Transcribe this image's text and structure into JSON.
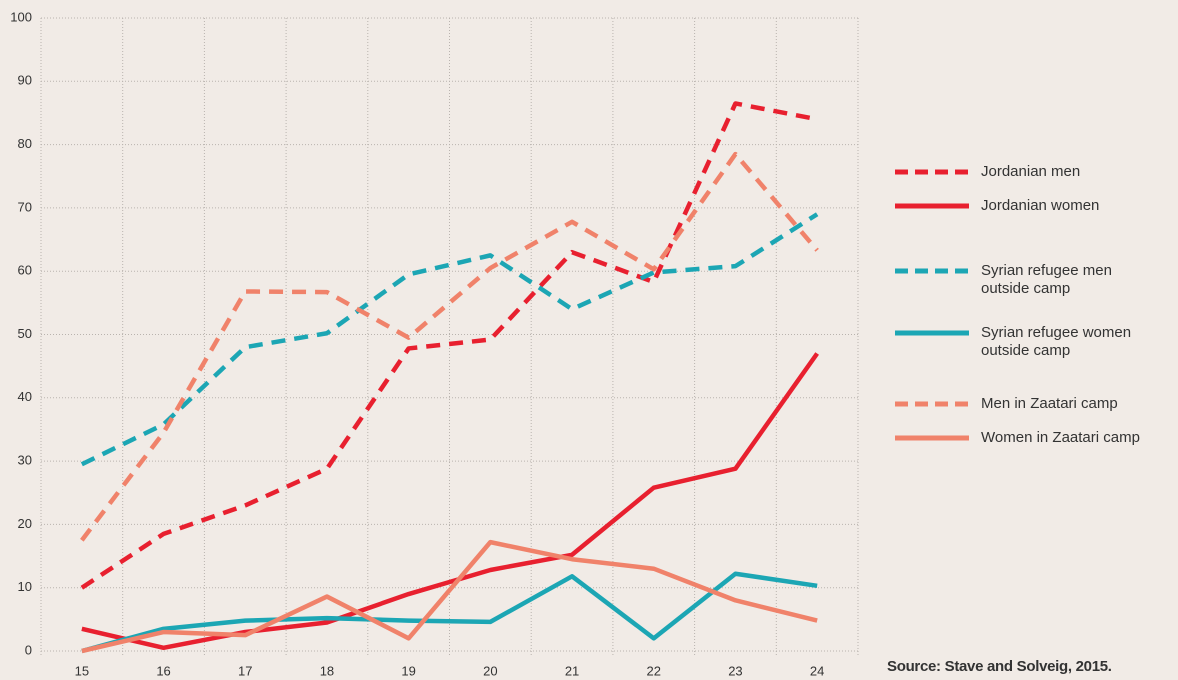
{
  "chart_data": {
    "type": "line",
    "categories": [
      "15",
      "16",
      "17",
      "18",
      "19",
      "20",
      "21",
      "22",
      "23",
      "24"
    ],
    "series": [
      {
        "name": "Jordanian men",
        "color": "#e8202f",
        "dashed": true,
        "values": [
          10,
          18.5,
          23,
          28.8,
          47.8,
          49.2,
          63,
          58.3,
          86.5,
          84
        ]
      },
      {
        "name": "Jordanian women",
        "color": "#e8202f",
        "dashed": false,
        "values": [
          3.5,
          0.5,
          3,
          4.5,
          9,
          12.8,
          15.2,
          25.8,
          28.8,
          47
        ]
      },
      {
        "name": "Syrian refugee men outside camp",
        "color": "#1ca6b4",
        "dashed": true,
        "values": [
          29.5,
          35.8,
          48,
          50.2,
          59.5,
          62.5,
          54,
          59.8,
          60.8,
          69
        ]
      },
      {
        "name": "Syrian refugee women outside camp",
        "color": "#1ca6b4",
        "dashed": false,
        "values": [
          0,
          3.5,
          4.8,
          5.2,
          4.8,
          4.6,
          11.8,
          2,
          12.2,
          10.3
        ]
      },
      {
        "name": "Men in Zaatari camp",
        "color": "#f0826a",
        "dashed": true,
        "values": [
          17.5,
          34.5,
          56.8,
          56.7,
          49.5,
          60.5,
          67.8,
          60.3,
          78.5,
          63.3
        ]
      },
      {
        "name": "Women in Zaatari camp",
        "color": "#f0826a",
        "dashed": false,
        "values": [
          0,
          3,
          2.5,
          8.6,
          2,
          17.2,
          14.5,
          13,
          8,
          4.8
        ]
      }
    ],
    "ylim": [
      0,
      100
    ],
    "yticks": [
      0,
      10,
      20,
      30,
      40,
      50,
      60,
      70,
      80,
      90,
      100
    ],
    "grid": true,
    "source": "Source: Stave and Solveig, 2015."
  }
}
